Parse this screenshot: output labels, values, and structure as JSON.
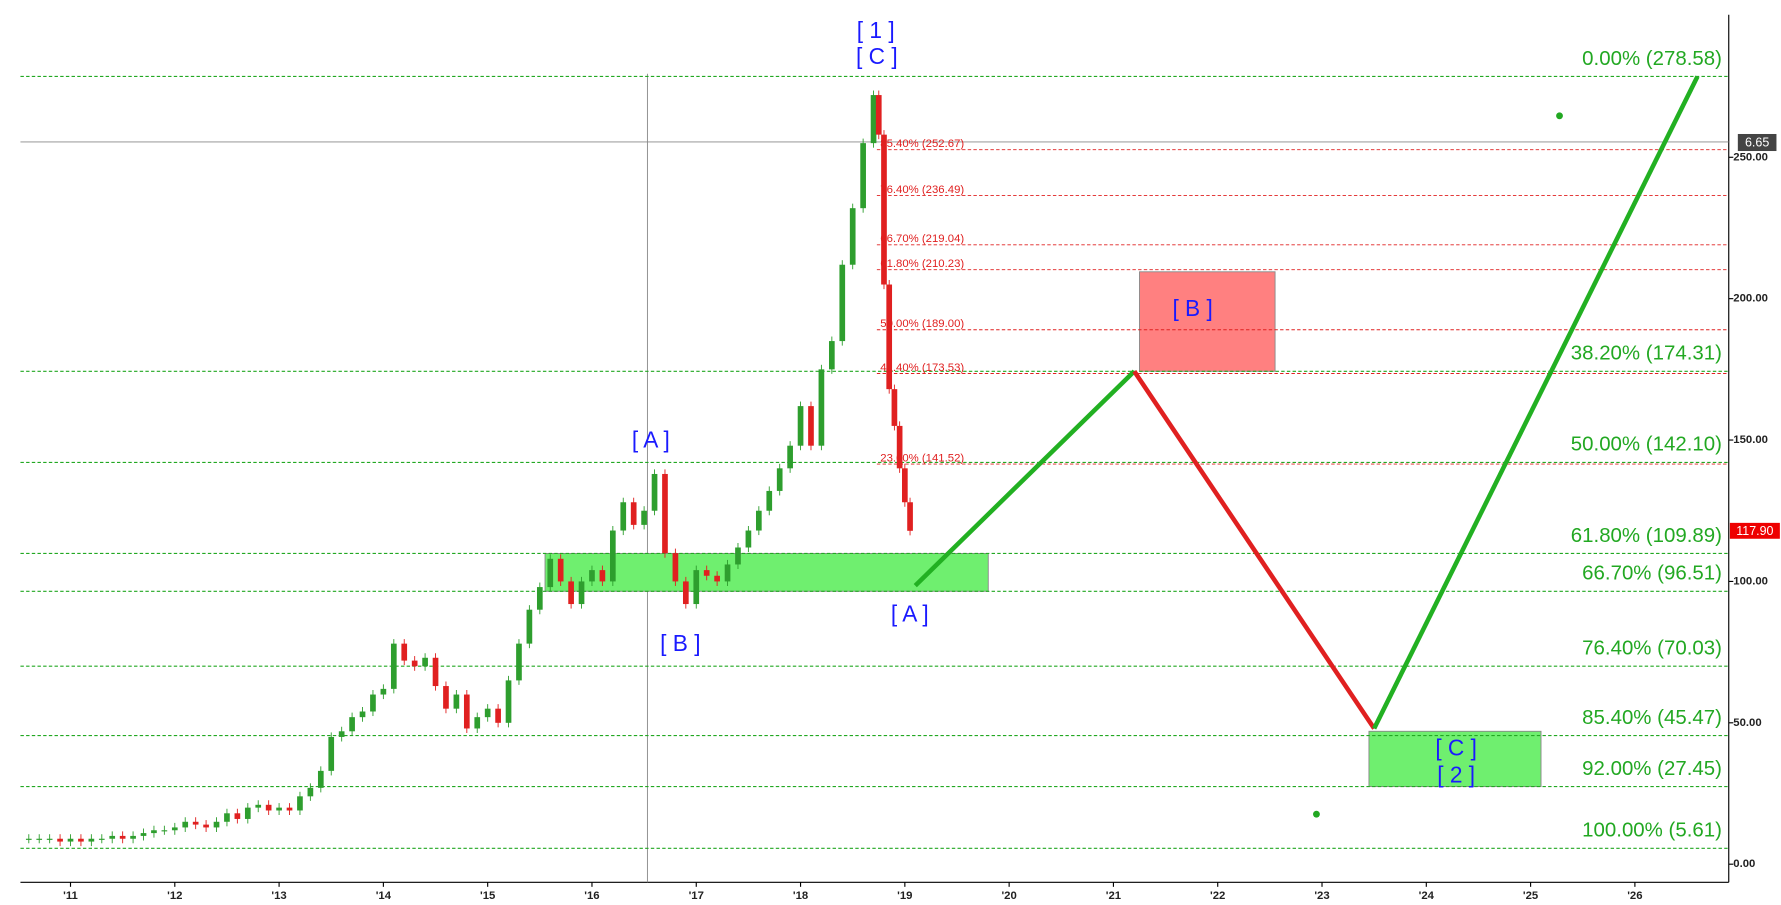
{
  "chart_data": {
    "type": "candlestick",
    "xlim": [
      2010.52,
      2026.9
    ],
    "ylim": [
      -6.4,
      300.4
    ],
    "xticks": [
      {
        "value": 2011,
        "label": "'11"
      },
      {
        "value": 2012,
        "label": "'12"
      },
      {
        "value": 2013,
        "label": "'13"
      },
      {
        "value": 2014,
        "label": "'14"
      },
      {
        "value": 2015,
        "label": "'15"
      },
      {
        "value": 2016,
        "label": "'16"
      },
      {
        "value": 2017,
        "label": "'17"
      },
      {
        "value": 2018,
        "label": "'18"
      },
      {
        "value": 2019,
        "label": "'19"
      },
      {
        "value": 2020,
        "label": "'20"
      },
      {
        "value": 2021,
        "label": "'21"
      },
      {
        "value": 2022,
        "label": "'22"
      },
      {
        "value": 2023,
        "label": "'23"
      },
      {
        "value": 2024,
        "label": "'24"
      },
      {
        "value": 2025,
        "label": "'25"
      },
      {
        "value": 2026,
        "label": "'26"
      }
    ],
    "yticks": [
      {
        "value": 0,
        "label": "0.00"
      },
      {
        "value": 50,
        "label": "50.00"
      },
      {
        "value": 100,
        "label": "100.00"
      },
      {
        "value": 150,
        "label": "150.00"
      },
      {
        "value": 200,
        "label": "200.00"
      },
      {
        "value": 250,
        "label": "250.00"
      }
    ],
    "price": {
      "up_color": "#2e9e2e",
      "down_color": "#e02020",
      "x": [
        2010.6,
        2010.7,
        2010.8,
        2010.9,
        2011.0,
        2011.1,
        2011.2,
        2011.3,
        2011.4,
        2011.5,
        2011.6,
        2011.7,
        2011.8,
        2011.9,
        2012.0,
        2012.1,
        2012.2,
        2012.3,
        2012.4,
        2012.5,
        2012.6,
        2012.7,
        2012.8,
        2012.9,
        2013.0,
        2013.1,
        2013.2,
        2013.3,
        2013.4,
        2013.5,
        2013.6,
        2013.7,
        2013.8,
        2013.9,
        2014.0,
        2014.1,
        2014.2,
        2014.3,
        2014.4,
        2014.5,
        2014.6,
        2014.7,
        2014.8,
        2014.9,
        2015.0,
        2015.1,
        2015.2,
        2015.3,
        2015.4,
        2015.5,
        2015.6,
        2015.7,
        2015.8,
        2015.9,
        2016.0,
        2016.1,
        2016.2,
        2016.3,
        2016.4,
        2016.5,
        2016.6,
        2016.7,
        2016.8,
        2016.9,
        2017.0,
        2017.1,
        2017.2,
        2017.3,
        2017.4,
        2017.5,
        2017.6,
        2017.7,
        2017.8,
        2017.9,
        2018.0,
        2018.1,
        2018.2,
        2018.3,
        2018.4,
        2018.5,
        2018.6,
        2018.7,
        2018.75,
        2018.8,
        2018.85,
        2018.9,
        2018.95,
        2019.0,
        2019.05
      ],
      "close": [
        9,
        9,
        9,
        8,
        9,
        8,
        9,
        9,
        10,
        9,
        10,
        11,
        12,
        12,
        13,
        15,
        14,
        13,
        15,
        18,
        16,
        20,
        21,
        19,
        20,
        19,
        24,
        27,
        33,
        45,
        47,
        52,
        54,
        60,
        62,
        78,
        72,
        70,
        73,
        63,
        55,
        60,
        48,
        52,
        55,
        50,
        65,
        78,
        90,
        98,
        108,
        100,
        92,
        100,
        104,
        100,
        118,
        128,
        120,
        125,
        138,
        110,
        100,
        92,
        104,
        102,
        100,
        106,
        112,
        118,
        125,
        132,
        140,
        148,
        162,
        148,
        175,
        185,
        212,
        232,
        255,
        272,
        258,
        205,
        168,
        155,
        140,
        128,
        117.9
      ]
    },
    "last_price_label": "117.90",
    "crosshair_label": "6.65",
    "fib_major": [
      {
        "value": 278.58,
        "label": "0.00% (278.58)"
      },
      {
        "value": 174.31,
        "label": "38.20% (174.31)"
      },
      {
        "value": 142.1,
        "label": "50.00% (142.10)"
      },
      {
        "value": 109.89,
        "label": "61.80% (109.89)"
      },
      {
        "value": 96.51,
        "label": "66.70% (96.51)"
      },
      {
        "value": 70.03,
        "label": "76.40% (70.03)"
      },
      {
        "value": 45.47,
        "label": "85.40% (45.47)"
      },
      {
        "value": 27.45,
        "label": "92.00% (27.45)"
      },
      {
        "value": 5.61,
        "label": "100.00% (5.61)"
      }
    ],
    "fib_major_color": "#22a822",
    "fib_minor": [
      {
        "value": 252.67,
        "label": "85.40% (252.67)"
      },
      {
        "value": 236.49,
        "label": "76.40% (236.49)"
      },
      {
        "value": 219.04,
        "label": "66.70% (219.04)"
      },
      {
        "value": 210.23,
        "label": "61.80% (210.23)"
      },
      {
        "value": 189.0,
        "label": "50.00% (189.00)"
      },
      {
        "value": 173.53,
        "label": "41.40% (173.53)"
      },
      {
        "value": 141.52,
        "label": "23.60% (141.52)"
      }
    ],
    "fib_minor_color": "#e02020",
    "zones": [
      {
        "x": [
          2015.55,
          2019.8
        ],
        "y": [
          96.51,
          109.89
        ],
        "color": "#6fef6f"
      },
      {
        "x": [
          2021.25,
          2022.55
        ],
        "y": [
          174.31,
          209.5
        ],
        "color": "#ff8080"
      },
      {
        "x": [
          2023.45,
          2025.1
        ],
        "y": [
          27.45,
          47
        ],
        "color": "#6fef6f"
      }
    ],
    "projection": [
      {
        "color": "#22b022",
        "x": [
          2019.1,
          2021.2
        ],
        "y": [
          98.5,
          174.31
        ]
      },
      {
        "color": "#e02020",
        "x": [
          2021.2,
          2023.5
        ],
        "y": [
          174.31,
          48
        ]
      },
      {
        "color": "#22b022",
        "x": [
          2023.5,
          2026.6
        ],
        "y": [
          48,
          278.58
        ]
      }
    ],
    "annotations": [
      "[ 1 ]",
      "[ C ]",
      "[ A ]",
      "[ B ]",
      "[ A ]",
      "[ B ]",
      "[ C ]",
      "[ 2 ]"
    ]
  }
}
